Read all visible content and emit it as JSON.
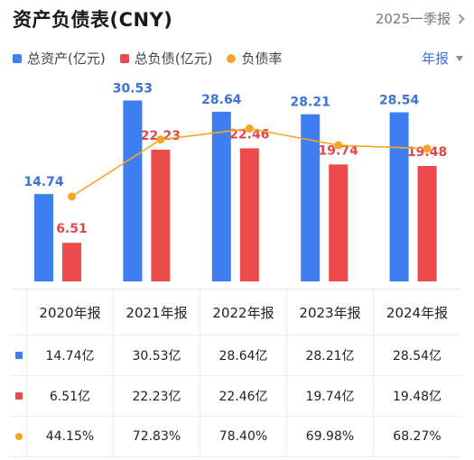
{
  "header": {
    "title": "资产负债表(CNY)",
    "period_link": "2025一季报"
  },
  "period_select": "年报",
  "colors": {
    "assets": "#3d7ef0",
    "liabilities": "#eb4b4b",
    "ratio": "#f5a623",
    "assets_label": "#3d73d6",
    "liab_label": "#e04848"
  },
  "chart_data": {
    "type": "bar",
    "categories": [
      "2020年报",
      "2021年报",
      "2022年报",
      "2023年报",
      "2024年报"
    ],
    "series": [
      {
        "name": "总资产(亿元)",
        "type": "bar",
        "values": [
          14.74,
          30.53,
          28.64,
          28.21,
          28.54
        ],
        "labels": [
          "14.74",
          "30.53",
          "28.64",
          "28.21",
          "28.54"
        ]
      },
      {
        "name": "总负债(亿元)",
        "type": "bar",
        "values": [
          6.51,
          22.23,
          22.46,
          19.74,
          19.48
        ],
        "labels": [
          "6.51",
          "22.23",
          "22.46",
          "19.74",
          "19.48"
        ]
      },
      {
        "name": "负债率",
        "type": "line",
        "values": [
          44.15,
          72.83,
          78.4,
          69.98,
          68.27
        ]
      }
    ],
    "legend_position": "top-left",
    "grid": false
  },
  "table": {
    "headers": [
      "2020年报",
      "2021年报",
      "2022年报",
      "2023年报",
      "2024年报"
    ],
    "rows": [
      {
        "marker": "square",
        "color": "#3d7ef0",
        "cells": [
          "14.74亿",
          "30.53亿",
          "28.64亿",
          "28.21亿",
          "28.54亿"
        ]
      },
      {
        "marker": "square",
        "color": "#eb4b4b",
        "cells": [
          "6.51亿",
          "22.23亿",
          "22.46亿",
          "19.74亿",
          "19.48亿"
        ]
      },
      {
        "marker": "dot",
        "color": "#f5a623",
        "cells": [
          "44.15%",
          "72.83%",
          "78.40%",
          "69.98%",
          "68.27%"
        ]
      }
    ]
  }
}
